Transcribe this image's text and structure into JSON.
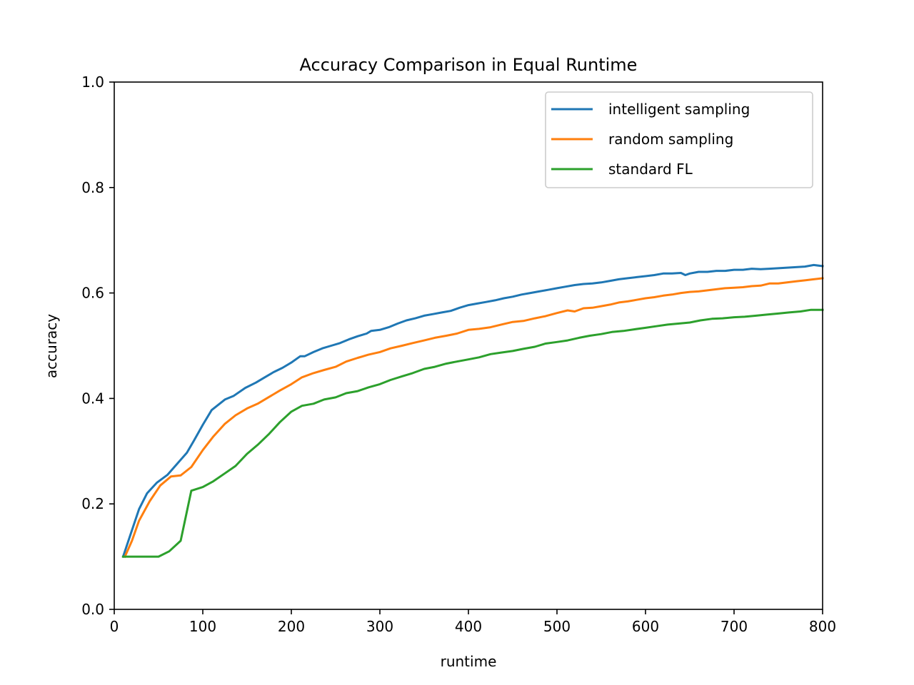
{
  "chart_data": {
    "type": "line",
    "title": "Accuracy Comparison in Equal Runtime",
    "xlabel": "runtime",
    "ylabel": "accuracy",
    "xlim": [
      0,
      800
    ],
    "ylim": [
      0,
      1.0
    ],
    "xticks": [
      "0",
      "100",
      "200",
      "300",
      "400",
      "500",
      "600",
      "700",
      "800"
    ],
    "yticks": [
      "0.0",
      "0.2",
      "0.4",
      "0.6",
      "0.8",
      "1.0"
    ],
    "grid": false,
    "legend_position": "upper right",
    "series": [
      {
        "name": "intelligent sampling",
        "color": "#1f77b4",
        "x": [
          10,
          18,
          28,
          37,
          48,
          60,
          72,
          82,
          90,
          100,
          110,
          125,
          135,
          148,
          160,
          170,
          180,
          190,
          200,
          210,
          215,
          225,
          235,
          245,
          255,
          265,
          275,
          285,
          290,
          300,
          310,
          320,
          330,
          340,
          350,
          360,
          370,
          380,
          390,
          400,
          410,
          420,
          430,
          440,
          450,
          460,
          470,
          480,
          490,
          500,
          510,
          520,
          530,
          540,
          550,
          560,
          570,
          580,
          590,
          600,
          610,
          620,
          630,
          640,
          645,
          650,
          660,
          670,
          680,
          690,
          700,
          710,
          720,
          730,
          740,
          750,
          760,
          770,
          780,
          790,
          800
        ],
        "y": [
          0.1,
          0.14,
          0.19,
          0.22,
          0.24,
          0.255,
          0.278,
          0.297,
          0.32,
          0.35,
          0.378,
          0.398,
          0.405,
          0.42,
          0.43,
          0.44,
          0.45,
          0.458,
          0.468,
          0.48,
          0.48,
          0.488,
          0.495,
          0.5,
          0.505,
          0.512,
          0.518,
          0.523,
          0.528,
          0.53,
          0.535,
          0.542,
          0.548,
          0.552,
          0.557,
          0.56,
          0.563,
          0.566,
          0.572,
          0.577,
          0.58,
          0.583,
          0.586,
          0.59,
          0.593,
          0.597,
          0.6,
          0.603,
          0.606,
          0.609,
          0.612,
          0.615,
          0.617,
          0.618,
          0.62,
          0.623,
          0.626,
          0.628,
          0.63,
          0.632,
          0.634,
          0.637,
          0.637,
          0.638,
          0.634,
          0.637,
          0.64,
          0.64,
          0.642,
          0.642,
          0.644,
          0.644,
          0.646,
          0.645,
          0.646,
          0.647,
          0.648,
          0.649,
          0.65,
          0.653,
          0.651
        ]
      },
      {
        "name": "random sampling",
        "color": "#ff7f0e",
        "x": [
          12,
          20,
          28,
          40,
          52,
          64,
          75,
          87,
          100,
          112,
          125,
          137,
          150,
          162,
          175,
          187,
          200,
          212,
          225,
          237,
          250,
          262,
          275,
          287,
          300,
          312,
          325,
          337,
          350,
          362,
          375,
          387,
          400,
          412,
          425,
          437,
          450,
          462,
          475,
          487,
          500,
          512,
          520,
          530,
          540,
          550,
          560,
          570,
          580,
          590,
          600,
          610,
          620,
          630,
          640,
          650,
          660,
          670,
          680,
          690,
          700,
          710,
          720,
          730,
          740,
          750,
          760,
          770,
          780,
          790,
          800
        ],
        "y": [
          0.1,
          0.13,
          0.168,
          0.205,
          0.235,
          0.252,
          0.254,
          0.27,
          0.302,
          0.328,
          0.352,
          0.368,
          0.381,
          0.39,
          0.403,
          0.415,
          0.427,
          0.44,
          0.448,
          0.454,
          0.46,
          0.47,
          0.477,
          0.483,
          0.488,
          0.495,
          0.5,
          0.505,
          0.51,
          0.515,
          0.519,
          0.523,
          0.53,
          0.532,
          0.535,
          0.54,
          0.545,
          0.547,
          0.552,
          0.556,
          0.562,
          0.567,
          0.565,
          0.571,
          0.572,
          0.575,
          0.578,
          0.582,
          0.584,
          0.587,
          0.59,
          0.592,
          0.595,
          0.597,
          0.6,
          0.602,
          0.603,
          0.605,
          0.607,
          0.609,
          0.61,
          0.611,
          0.613,
          0.614,
          0.618,
          0.618,
          0.62,
          0.622,
          0.624,
          0.626,
          0.628
        ]
      },
      {
        "name": "standard FL",
        "color": "#2ca02c",
        "x": [
          10,
          20,
          30,
          40,
          50,
          62,
          75,
          87,
          100,
          112,
          125,
          137,
          150,
          162,
          175,
          187,
          200,
          212,
          225,
          237,
          250,
          262,
          275,
          287,
          300,
          312,
          325,
          337,
          350,
          362,
          375,
          387,
          400,
          412,
          425,
          437,
          450,
          462,
          475,
          487,
          500,
          512,
          525,
          537,
          550,
          562,
          575,
          587,
          600,
          612,
          625,
          637,
          650,
          662,
          675,
          687,
          700,
          712,
          725,
          737,
          750,
          762,
          775,
          787,
          800
        ],
        "y": [
          0.1,
          0.1,
          0.1,
          0.1,
          0.1,
          0.11,
          0.13,
          0.225,
          0.232,
          0.243,
          0.258,
          0.272,
          0.295,
          0.312,
          0.333,
          0.355,
          0.375,
          0.386,
          0.39,
          0.398,
          0.402,
          0.41,
          0.414,
          0.421,
          0.427,
          0.435,
          0.442,
          0.448,
          0.456,
          0.46,
          0.466,
          0.47,
          0.474,
          0.478,
          0.484,
          0.487,
          0.49,
          0.494,
          0.498,
          0.504,
          0.507,
          0.51,
          0.515,
          0.519,
          0.522,
          0.526,
          0.528,
          0.531,
          0.534,
          0.537,
          0.54,
          0.542,
          0.544,
          0.548,
          0.551,
          0.552,
          0.554,
          0.555,
          0.557,
          0.559,
          0.561,
          0.563,
          0.565,
          0.568,
          0.568
        ]
      }
    ]
  }
}
